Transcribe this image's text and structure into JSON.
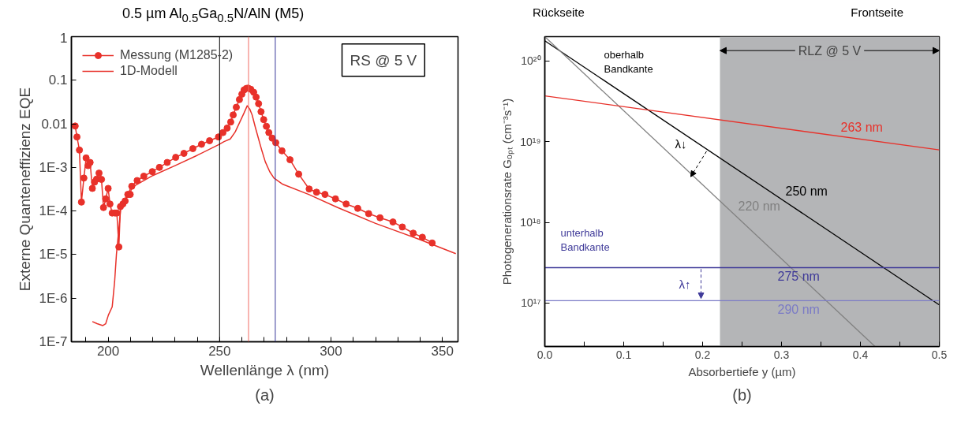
{
  "chart_data": [
    {
      "type": "line",
      "title": "0.5 µm Al$_{0.5}$Ga$_{0.5}$N/AlN (M5)",
      "xlabel": "Wellenlänge λ (nm)",
      "ylabel": "Externe Quanteneffizienz EQE",
      "log": true,
      "legend": "top left",
      "grid": false,
      "xlim": [
        183.5,
        357
      ],
      "ylim": [
        1e-07,
        1
      ],
      "xticks": [
        {
          "value": 190,
          "label": null
        },
        200,
        {
          "value": 210,
          "label": null
        },
        {
          "value": 220,
          "label": null
        },
        {
          "value": 230,
          "label": null
        },
        {
          "value": 240,
          "label": null
        },
        250,
        {
          "value": 260,
          "label": null
        },
        {
          "value": 270,
          "label": null
        },
        {
          "value": 280,
          "label": null
        },
        {
          "value": 290,
          "label": null
        },
        300,
        {
          "value": 310,
          "label": null
        },
        {
          "value": 320,
          "label": null
        },
        {
          "value": 330,
          "label": null
        },
        {
          "value": 340,
          "label": null
        },
        350
      ],
      "yticks": [
        {
          "value": 1e-07,
          "label": "1E-7"
        },
        {
          "value": 1e-06,
          "label": "1E-6"
        },
        {
          "value": 1e-05,
          "label": "1E-5"
        },
        {
          "value": 0.0001,
          "label": "1E-4"
        },
        {
          "value": 0.001,
          "label": "1E-3"
        },
        0.01,
        0.1,
        1
      ],
      "ref_lines": [
        {
          "axis": "x",
          "value": 250,
          "color": "#000000"
        },
        {
          "axis": "x",
          "value": 263,
          "color": "#f06a64"
        },
        {
          "axis": "x",
          "value": 275,
          "color": "#3a3a9a"
        }
      ],
      "annotations": [
        "RS @ 5 V",
        "(a)"
      ],
      "series": [
        {
          "name": "Messung (M1285-2)",
          "color": "#e8312a",
          "marker": "circle",
          "x": [
            185.2,
            186.0,
            187.1,
            188.0,
            189.1,
            190.1,
            191.0,
            191.9,
            192.9,
            193.9,
            194.8,
            195.9,
            197.0,
            197.9,
            198.9,
            200.0,
            200.8,
            201.8,
            203.1,
            203.9,
            204.8,
            205.5,
            206.6,
            207.6,
            208.8,
            209.9,
            210.6,
            213.0,
            216.0,
            219.8,
            223.0,
            226.5,
            230.3,
            234.0,
            238.0,
            241.9,
            245.5,
            249.5,
            251.5,
            253.4,
            255.0,
            256.1,
            257.5,
            258.9,
            260.0,
            261.0,
            262.0,
            262.8,
            264.0,
            265.3,
            266.4,
            267.5,
            268.6,
            269.8,
            271.0,
            272.1,
            273.6,
            275.2,
            278.0,
            281.6,
            285.5,
            290.2,
            293.5,
            297.3,
            302.0,
            306.8,
            312.0,
            316.9,
            322.0,
            327.8,
            332.0,
            336.9,
            341.0,
            345.4
          ],
          "values": [
            0.0089,
            0.005,
            0.0025,
            0.00016,
            0.00057,
            0.00165,
            0.0011,
            0.0013,
            0.00033,
            0.00046,
            0.00054,
            0.00074,
            0.00053,
            0.00012,
            0.00019,
            0.00033,
            0.000145,
            9e-05,
            9e-05,
            9e-05,
            1.5e-05,
            0.000126,
            0.000145,
            0.00017,
            0.00024,
            0.00024,
            0.00037,
            0.0005,
            0.00063,
            0.0008,
            0.001,
            0.0013,
            0.0017,
            0.0021,
            0.0027,
            0.0034,
            0.0041,
            0.005,
            0.0063,
            0.008,
            0.011,
            0.016,
            0.024,
            0.036,
            0.048,
            0.06,
            0.065,
            0.066,
            0.062,
            0.053,
            0.041,
            0.029,
            0.019,
            0.0125,
            0.0088,
            0.0063,
            0.0047,
            0.0037,
            0.0024,
            0.0015,
            0.0007,
            0.00032,
            0.00027,
            0.00024,
            0.00019,
            0.000145,
            0.000115,
            8.7e-05,
            7e-05,
            5.6e-05,
            4.3e-05,
            3.1e-05,
            2.5e-05,
            1.85e-05
          ]
        },
        {
          "name": "1D-Modell",
          "color": "#e8312a",
          "marker": "none",
          "x": [
            192.9,
            195.0,
            197.6,
            198.9,
            200.1,
            201.8,
            202.9,
            203.7,
            205.7,
            210.2,
            220.0,
            230.0,
            240.0,
            249.5,
            252.0,
            254.8,
            257.0,
            258.9,
            260.8,
            262.4,
            263.5,
            264.6,
            266.0,
            267.5,
            269.0,
            270.5,
            272.5,
            274.4,
            278.4,
            290.0,
            303.0,
            320.0,
            340.0,
            356.0
          ],
          "values": [
            2.9e-07,
            2.6e-07,
            2.35e-07,
            2.6e-07,
            4.1e-07,
            6.3e-07,
            2.4e-06,
            1e-05,
            0.00012,
            0.00034,
            0.00065,
            0.0011,
            0.0019,
            0.0033,
            0.0039,
            0.0045,
            0.0065,
            0.0105,
            0.017,
            0.026,
            0.022,
            0.016,
            0.0085,
            0.0045,
            0.0024,
            0.00135,
            0.0008,
            0.00057,
            0.00041,
            0.00024,
            0.00012,
            5.2e-05,
            2.2e-05,
            1.05e-05
          ]
        }
      ]
    },
    {
      "type": "line",
      "xlabel": "Absorbertiefe y (µm)",
      "ylabel": "Photogenerationsrate Gₒₚₜ (cm⁻³s⁻¹)",
      "log": true,
      "legend": false,
      "grid": false,
      "xlim": [
        0,
        0.5
      ],
      "ylim": [
        2.9e+16,
        2e+20
      ],
      "xticks": [
        {
          "value": 0,
          "label": "0.0"
        },
        {
          "value": 0.05,
          "label": null
        },
        0.1,
        {
          "value": 0.15,
          "label": null
        },
        0.2,
        {
          "value": 0.25,
          "label": null
        },
        0.3,
        {
          "value": 0.35,
          "label": null
        },
        0.4,
        {
          "value": 0.45,
          "label": null
        },
        0.5
      ],
      "yticks": [
        {
          "value": 1e+17,
          "label": "10¹⁷"
        },
        {
          "value": 1e+18,
          "label": "10¹⁸"
        },
        {
          "value": 1e+19,
          "label": "10¹⁹"
        },
        {
          "value": 1e+20,
          "label": "10²⁰"
        }
      ],
      "bands": [
        {
          "axis": "x",
          "from": 0.222,
          "to": 0.5,
          "label": "RLZ @ 5 V",
          "color": "#b4b5b7"
        }
      ],
      "annotations": [
        "Rückseite",
        "Frontseite",
        "oberhalb\nBandkante",
        "unterhalb\nBandkante",
        "λ↓",
        "λ↑",
        "(b)"
      ],
      "series": [
        {
          "name": "250 nm",
          "color": "#000000",
          "x": [
            0,
            0.5
          ],
          "values": [
            1.78e+20,
            9.5e+16
          ]
        },
        {
          "name": "220 nm",
          "color": "#808080",
          "x": [
            0,
            0.4185
          ],
          "values": [
            2e+20,
            2.9e+16
          ]
        },
        {
          "name": "263 nm",
          "color": "#e8312a",
          "x": [
            0,
            0.5
          ],
          "values": [
            3.7e+19,
            7.9e+18
          ]
        },
        {
          "name": "275 nm",
          "color": "#3f3a99",
          "x": [
            0,
            0.5
          ],
          "values": [
            2.75e+17,
            2.75e+17
          ]
        },
        {
          "name": "290 nm",
          "color": "#7b7bc6",
          "x": [
            0,
            0.5
          ],
          "values": [
            1.07e+17,
            1.07e+17
          ]
        }
      ]
    }
  ]
}
